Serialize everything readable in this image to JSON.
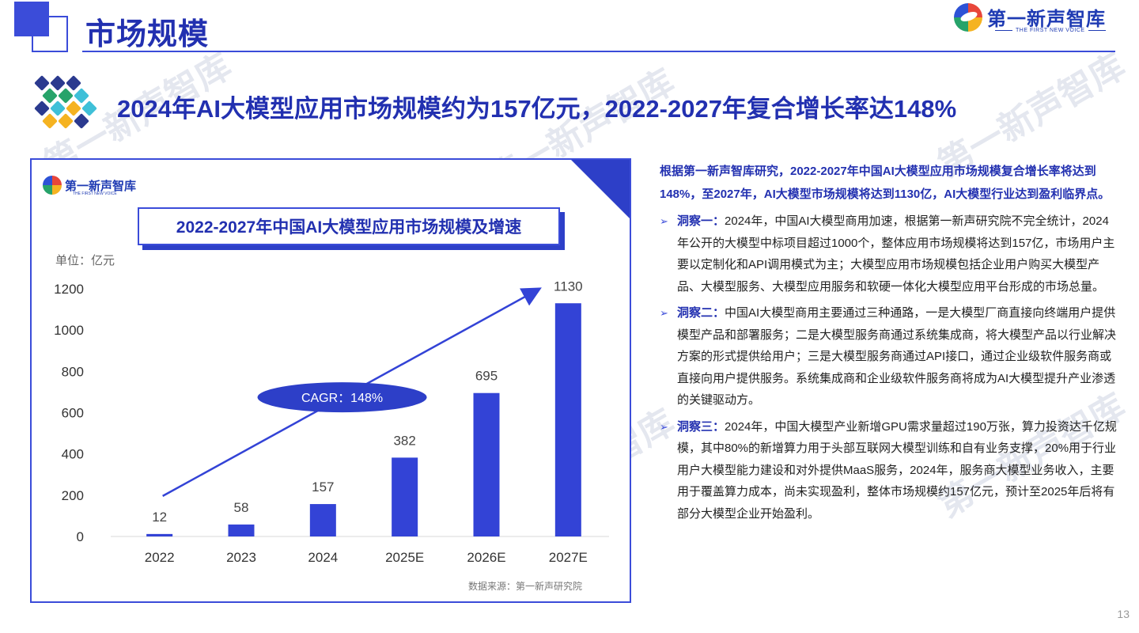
{
  "header": {
    "title": "市场规模",
    "brand_name": "第一新声智库",
    "brand_tagline": "THE FIRST NEW VOICE"
  },
  "headline": "2024年AI大模型应用市场规模约为157亿元，2022-2027年复合增长率达148%",
  "watermark_text": "第一新声智库",
  "chart_panel": {
    "brand_name": "第一新声智库",
    "brand_tagline": "THE FIRST NEW VOICE",
    "unit": "单位：亿元",
    "source": "数据来源：第一新声研究院"
  },
  "chart_data": {
    "type": "bar",
    "title": "2022-2027年中国AI大模型应用市场规模及增速",
    "categories": [
      "2022",
      "2023",
      "2024",
      "2025E",
      "2026E",
      "2027E"
    ],
    "values": [
      12,
      58,
      157,
      382,
      695,
      1130
    ],
    "data_labels": [
      "12",
      "58",
      "157",
      "382",
      "695",
      "1130"
    ],
    "ylim": [
      0,
      1200
    ],
    "yticks": [
      0,
      200,
      400,
      600,
      800,
      1000,
      1200
    ],
    "grid": false,
    "bar_color": "#3343d6",
    "annotation": {
      "text": "CAGR：148%",
      "style": "filled ellipse on trend arrow from 2022 to 2027E"
    }
  },
  "summary": "根据第一新声智库研究，2022-2027年中国AI大模型应用市场规模复合增长率将达到148%，至2027年，AI大模型市场规模将达到1130亿，AI大模型行业达到盈利临界点。",
  "insights": [
    {
      "label": "洞察一：",
      "text": "2024年，中国AI大模型商用加速，根据第一新声研究院不完全统计，2024年公开的大模型中标项目超过1000个，整体应用市场规模将达到157亿，市场用户主要以定制化和API调用模式为主；大模型应用市场规模包括企业用户购买大模型产品、大模型服务、大模型应用服务和软硬一体化大模型应用平台形成的市场总量。"
    },
    {
      "label": "洞察二：",
      "text": "中国AI大模型商用主要通过三种通路，一是大模型厂商直接向终端用户提供模型产品和部署服务；二是大模型服务商通过系统集成商，将大模型产品以行业解决方案的形式提供给用户；三是大模型服务商通过API接口，通过企业级软件服务商或直接向用户提供服务。系统集成商和企业级软件服务商将成为AI大模型提升产业渗透的关键驱动方。"
    },
    {
      "label": "洞察三：",
      "text": "2024年，中国大模型产业新增GPU需求量超过190万张，算力投资达千亿规模，其中80%的新增算力用于头部互联网大模型训练和自有业务支撑，20%用于行业用户大模型能力建设和对外提供MaaS服务，2024年，服务商大模型业务收入，主要用于覆盖算力成本，尚未实现盈利，整体市场规模约157亿元，预计至2025年后将有部分大模型企业开始盈利。"
    }
  ],
  "page_number": "13",
  "colors": {
    "primary": "#2230b0",
    "accent": "#3b4cd9",
    "bar": "#3343d6"
  }
}
